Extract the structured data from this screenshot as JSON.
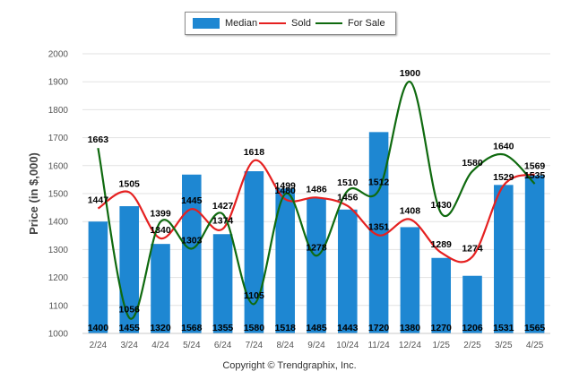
{
  "legend": {
    "median_label": "Median",
    "sold_label": "Sold",
    "forsale_label": "For Sale"
  },
  "footer": "Copyright © Trendgraphix, Inc.",
  "colors": {
    "median": "#1e87d2",
    "sold": "#e52020",
    "forsale": "#0f6a0f"
  },
  "chart_data": {
    "type": "bar",
    "title": "",
    "xlabel": "",
    "ylabel": "Price (in $,000)",
    "ylim": [
      1000,
      2000
    ],
    "yticks": [
      1000,
      1100,
      1200,
      1300,
      1400,
      1500,
      1600,
      1700,
      1800,
      1900,
      2000
    ],
    "grid": true,
    "legend_position": "top-center",
    "categories": [
      "2/24",
      "3/24",
      "4/24",
      "5/24",
      "6/24",
      "7/24",
      "8/24",
      "9/24",
      "10/24",
      "11/24",
      "12/24",
      "1/25",
      "2/25",
      "3/25",
      "4/25"
    ],
    "series": [
      {
        "name": "Median",
        "type": "bar",
        "values": [
          1400,
          1455,
          1320,
          1568,
          1355,
          1580,
          1518,
          1485,
          1443,
          1720,
          1380,
          1270,
          1206,
          1531,
          1565
        ]
      },
      {
        "name": "Sold",
        "type": "line",
        "values": [
          1447,
          1505,
          1340,
          1445,
          1374,
          1618,
          1480,
          1486,
          1456,
          1351,
          1408,
          1289,
          1274,
          1529,
          1569
        ]
      },
      {
        "name": "For Sale",
        "type": "line",
        "values": [
          1663,
          1056,
          1399,
          1303,
          1427,
          1105,
          1499,
          1278,
          1510,
          1512,
          1900,
          1430,
          1580,
          1640,
          1535
        ]
      }
    ]
  }
}
